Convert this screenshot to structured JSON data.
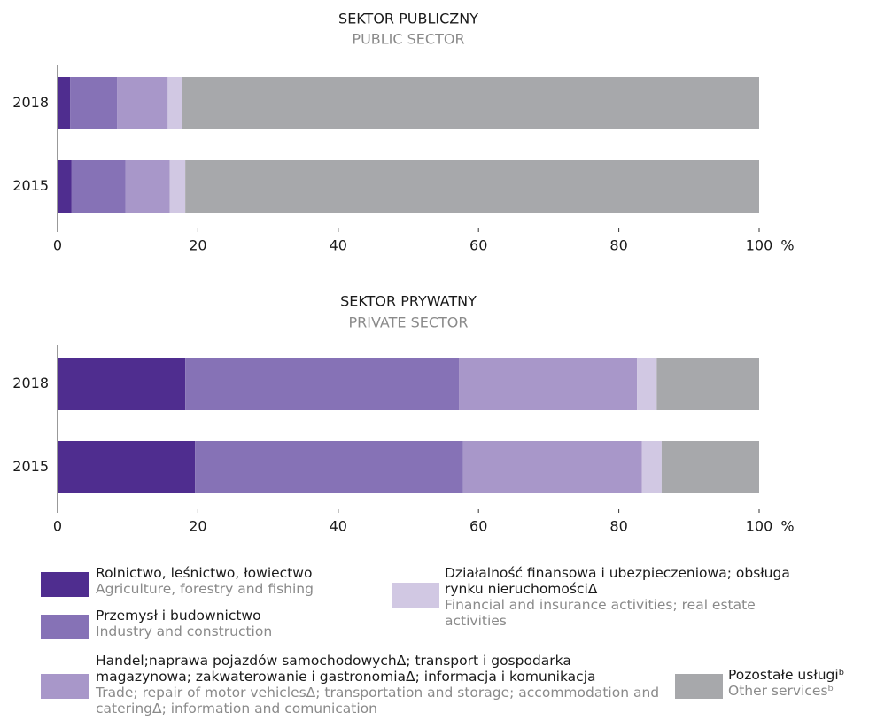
{
  "chart_data": [
    {
      "type": "bar",
      "orientation": "horizontal",
      "stacked": true,
      "title": "SEKTOR PUBLICZNY",
      "subtitle": "PUBLIC SECTOR",
      "categories": [
        "2018",
        "2015"
      ],
      "series": [
        {
          "name": "Rolnictwo, leśnictwo, łowiectwo",
          "name_en": "Agriculture, forestry and fishing",
          "color": "#4f2d8f",
          "values": [
            1.8,
            2.0
          ]
        },
        {
          "name": "Przemysł i budownictwo",
          "name_en": "Industry and construction",
          "color": "#8672b6",
          "values": [
            6.7,
            7.7
          ]
        },
        {
          "name": "Handel;naprawa pojazdów samochodowychΔ; transport i gospodarka magazynowa; zakwaterowanie i gastronomiaΔ; informacja i komunikacja",
          "name_en": "Trade; repair of motor vehiclesΔ; transportation and storage; accommodation and cateringΔ; information and comunication",
          "color": "#a897c9",
          "values": [
            7.2,
            6.3
          ]
        },
        {
          "name": "Działalność finansowa i ubezpieczeniowa; obsługa rynku nieruchomościΔ",
          "name_en": "Financial and insurance activities; real estate activities",
          "color": "#d1c8e3",
          "values": [
            2.1,
            2.2
          ]
        },
        {
          "name": "Pozostałe usługiᵇ",
          "name_en": "Other servicesᵇ",
          "color": "#a7a8ab",
          "values": [
            82.2,
            81.8
          ]
        }
      ],
      "xlim": [
        0,
        100
      ],
      "xticks": [
        0,
        20,
        40,
        60,
        80,
        100
      ],
      "x_unit": "%"
    },
    {
      "type": "bar",
      "orientation": "horizontal",
      "stacked": true,
      "title": "SEKTOR PRYWATNY",
      "subtitle": "PRIVATE SECTOR",
      "categories": [
        "2018",
        "2015"
      ],
      "series": [
        {
          "color": "#4f2d8f",
          "values": [
            18.2,
            19.6
          ]
        },
        {
          "color": "#8672b6",
          "values": [
            39.0,
            38.2
          ]
        },
        {
          "color": "#a897c9",
          "values": [
            25.4,
            25.5
          ]
        },
        {
          "color": "#d1c8e3",
          "values": [
            2.8,
            2.8
          ]
        },
        {
          "color": "#a7a8ab",
          "values": [
            14.6,
            13.9
          ]
        }
      ],
      "xlim": [
        0,
        100
      ],
      "xticks": [
        0,
        20,
        40,
        60,
        80,
        100
      ],
      "x_unit": "%"
    }
  ]
}
